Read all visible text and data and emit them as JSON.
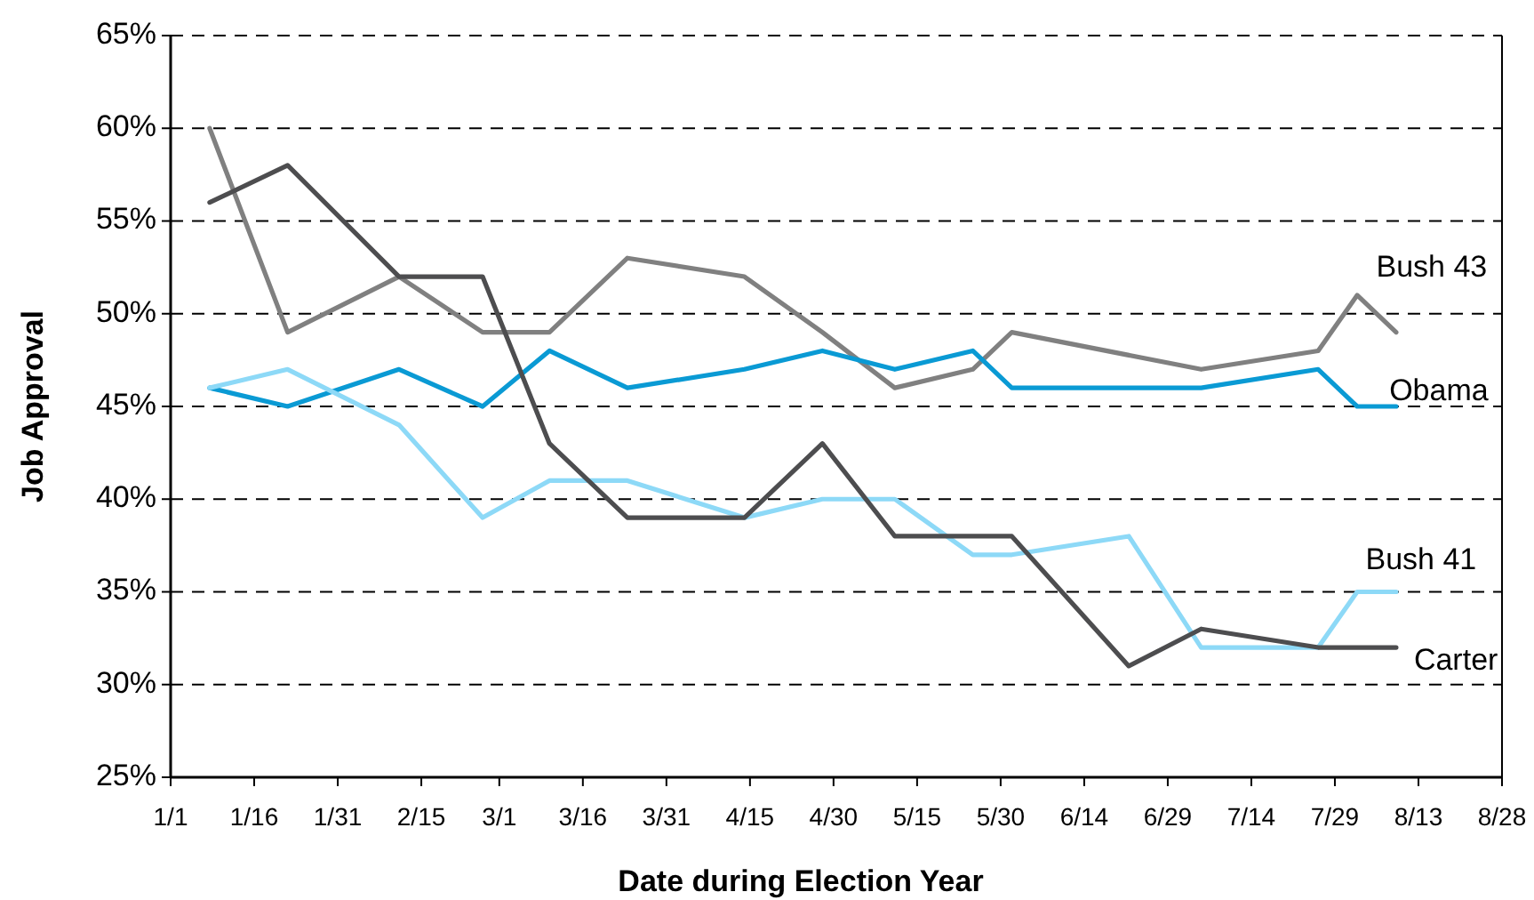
{
  "chart_data": {
    "type": "line",
    "xlabel": "Date during Election Year",
    "ylabel": "Job Approval",
    "xlim": [
      "--01-01",
      "--08-28"
    ],
    "xticks": [
      {
        "value": "--01-01",
        "label": "1/1"
      },
      {
        "value": "--01-16",
        "label": "1/16"
      },
      {
        "value": "--01-31",
        "label": "1/31"
      },
      {
        "value": "--02-15",
        "label": "2/15"
      },
      {
        "value": "--03-01",
        "label": "3/1"
      },
      {
        "value": "--03-16",
        "label": "3/16"
      },
      {
        "value": "--03-31",
        "label": "3/31"
      },
      {
        "value": "--04-15",
        "label": "4/15"
      },
      {
        "value": "--04-30",
        "label": "4/30"
      },
      {
        "value": "--05-15",
        "label": "5/15"
      },
      {
        "value": "--05-30",
        "label": "5/30"
      },
      {
        "value": "--06-14",
        "label": "6/14"
      },
      {
        "value": "--06-29",
        "label": "6/29"
      },
      {
        "value": "--07-14",
        "label": "7/14"
      },
      {
        "value": "--07-29",
        "label": "7/29"
      },
      {
        "value": "--08-13",
        "label": "8/13"
      },
      {
        "value": "--08-28",
        "label": "8/28"
      }
    ],
    "ylim": [
      25,
      65
    ],
    "yticks": [
      {
        "value": 25,
        "label": "25%"
      },
      {
        "value": 30,
        "label": "30%"
      },
      {
        "value": 35,
        "label": "35%"
      },
      {
        "value": 40,
        "label": "40%"
      },
      {
        "value": 45,
        "label": "45%"
      },
      {
        "value": 50,
        "label": "50%"
      },
      {
        "value": 55,
        "label": "55%"
      },
      {
        "value": 60,
        "label": "60%"
      },
      {
        "value": 65,
        "label": "65%"
      }
    ],
    "grid": "y",
    "marker": "none",
    "line_style": "solid",
    "series": [
      {
        "name": "Bush 43",
        "color": "#808080",
        "x": [
          "--01-08",
          "--01-22",
          "--02-11",
          "--02-26",
          "--03-10",
          "--03-24",
          "--04-14",
          "--04-28",
          "--05-11",
          "--05-25",
          "--06-01",
          "--07-05",
          "--07-26",
          "--08-02",
          "--08-09"
        ],
        "values": [
          60,
          49,
          52,
          49,
          49,
          53,
          52,
          49,
          46,
          47,
          49,
          47,
          48,
          51,
          49
        ]
      },
      {
        "name": "Obama",
        "color": "#0a9ad4",
        "x": [
          "--01-08",
          "--01-22",
          "--02-11",
          "--02-26",
          "--03-10",
          "--03-24",
          "--04-14",
          "--04-28",
          "--05-11",
          "--05-25",
          "--06-01",
          "--07-05",
          "--07-26",
          "--08-02",
          "--08-09"
        ],
        "values": [
          46,
          45,
          47,
          45,
          48,
          46,
          47,
          48,
          47,
          48,
          46,
          46,
          47,
          45,
          45
        ]
      },
      {
        "name": "Bush 41",
        "color": "#8dd9f7",
        "x": [
          "--01-08",
          "--01-22",
          "--02-11",
          "--02-26",
          "--03-10",
          "--03-24",
          "--04-14",
          "--04-28",
          "--05-11",
          "--05-25",
          "--06-01",
          "--06-22",
          "--07-05",
          "--07-26",
          "--08-02",
          "--08-09"
        ],
        "values": [
          46,
          47,
          44,
          39,
          41,
          41,
          39,
          40,
          40,
          37,
          37,
          38,
          32,
          32,
          35,
          35
        ]
      },
      {
        "name": "Carter",
        "color": "#4d4d4f",
        "x": [
          "--01-08",
          "--01-22",
          "--02-11",
          "--02-26",
          "--03-10",
          "--03-24",
          "--04-14",
          "--04-28",
          "--05-11",
          "--06-01",
          "--06-22",
          "--07-05",
          "--07-26",
          "--08-09"
        ],
        "values": [
          56,
          58,
          52,
          52,
          43,
          39,
          39,
          43,
          38,
          38,
          31,
          33,
          32,
          32
        ]
      }
    ]
  }
}
